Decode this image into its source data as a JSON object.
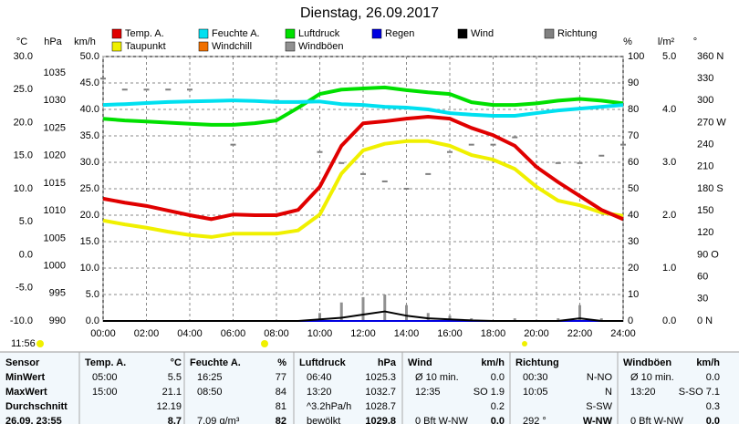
{
  "chart_data": {
    "type": "line",
    "title": "Dienstag, 26.09.2017",
    "xlim": [
      0,
      24
    ],
    "xticks": [
      {
        "value": 0,
        "label": "00:00"
      },
      {
        "value": 2,
        "label": "02:00"
      },
      {
        "value": 4,
        "label": "04:00"
      },
      {
        "value": 6,
        "label": "06:00"
      },
      {
        "value": 8,
        "label": "08:00"
      },
      {
        "value": 10,
        "label": "10:00"
      },
      {
        "value": 12,
        "label": "12:00"
      },
      {
        "value": 14,
        "label": "14:00"
      },
      {
        "value": 16,
        "label": "16:00"
      },
      {
        "value": 18,
        "label": "18:00"
      },
      {
        "value": 20,
        "label": "20:00"
      },
      {
        "value": 22,
        "label": "22:00"
      },
      {
        "value": 24,
        "label": "24:00"
      }
    ],
    "x": [
      0,
      1,
      2,
      3,
      4,
      5,
      6,
      7,
      8,
      9,
      10,
      11,
      12,
      13,
      14,
      15,
      16,
      17,
      18,
      19,
      20,
      21,
      22,
      23,
      24
    ],
    "axes": [
      {
        "label": "°C",
        "color": "#e00000",
        "lim": [
          -10,
          30
        ],
        "ticks": [
          {
            "value": -10,
            "label": "-10.0"
          },
          {
            "value": -5,
            "label": "-5.0"
          },
          {
            "value": 0,
            "label": "0.0"
          },
          {
            "value": 5,
            "label": "5.0"
          },
          {
            "value": 10,
            "label": "10.0"
          },
          {
            "value": 15,
            "label": "15.0"
          },
          {
            "value": 20,
            "label": "20.0"
          },
          {
            "value": 25,
            "label": "25.0"
          },
          {
            "value": 30,
            "label": "30.0"
          }
        ]
      },
      {
        "label": "hPa",
        "color": "#00b000",
        "lim": [
          990,
          1038
        ],
        "ticks": [
          990,
          995,
          1000,
          1005,
          1010,
          1015,
          1020,
          1025,
          1030,
          1035
        ]
      },
      {
        "label": "km/h",
        "color": "#000000",
        "lim": [
          0,
          50
        ],
        "grid": true,
        "ticks": [
          {
            "value": 0,
            "label": "0.0"
          },
          {
            "value": 5,
            "label": "5.0"
          },
          {
            "value": 10,
            "label": "10.0"
          },
          {
            "value": 15,
            "label": "15.0"
          },
          {
            "value": 20,
            "label": "20.0"
          },
          {
            "value": 25,
            "label": "25.0"
          },
          {
            "value": 30,
            "label": "30.0"
          },
          {
            "value": 35,
            "label": "35.0"
          },
          {
            "value": 40,
            "label": "40.0"
          },
          {
            "value": 45,
            "label": "45.0"
          },
          {
            "value": 50,
            "label": "50.0"
          }
        ]
      },
      {
        "label": "%",
        "color": "#00c8e8",
        "lim": [
          0,
          100
        ],
        "ticks": [
          0,
          10,
          20,
          30,
          40,
          50,
          60,
          70,
          80,
          90,
          100
        ]
      },
      {
        "label": "l/m²",
        "color": "#0000d0",
        "lim": [
          0,
          5
        ],
        "ticks": [
          {
            "value": 0,
            "label": "0.0"
          },
          {
            "value": 1,
            "label": "1.0"
          },
          {
            "value": 2,
            "label": "2.0"
          },
          {
            "value": 3,
            "label": "3.0"
          },
          {
            "value": 4,
            "label": "4.0"
          },
          {
            "value": 5,
            "label": "5.0"
          }
        ]
      },
      {
        "label": "°",
        "color": "#808080",
        "lim": [
          0,
          360
        ],
        "ticks": [
          {
            "value": 0,
            "label": "0 N"
          },
          30,
          60,
          {
            "value": 90,
            "label": "90 O"
          },
          120,
          150,
          {
            "value": 180,
            "label": "180 S"
          },
          210,
          240,
          {
            "value": 270,
            "label": "270 W"
          },
          300,
          330,
          {
            "value": 360,
            "label": "360 N"
          }
        ]
      }
    ],
    "series": [
      {
        "name": "Temp. A.",
        "color": "#e00000",
        "type": "line",
        "axis": 0,
        "values": [
          8.5,
          7.9,
          7.4,
          6.7,
          6.0,
          5.4,
          6.1,
          6.0,
          6.0,
          6.8,
          10.3,
          16.5,
          19.9,
          20.2,
          20.6,
          20.9,
          20.6,
          19.2,
          18.1,
          16.5,
          13.3,
          11.0,
          8.9,
          6.8,
          5.4
        ]
      },
      {
        "name": "Feuchte A.",
        "color": "#00e0f0",
        "type": "line",
        "axis": 3,
        "values": [
          81.7,
          82,
          82.4,
          82.8,
          83,
          83.2,
          83.4,
          83.2,
          82.8,
          82.8,
          83,
          82,
          81.7,
          81,
          80.7,
          80,
          78.6,
          78,
          77.6,
          77.6,
          78.6,
          79.6,
          80.3,
          81,
          81.7
        ]
      },
      {
        "name": "Luftdruck",
        "color": "#00e000",
        "type": "line",
        "axis": 1,
        "values": [
          1026.7,
          1026.4,
          1026.2,
          1026,
          1025.8,
          1025.6,
          1025.6,
          1025.9,
          1026.4,
          1028.7,
          1031.2,
          1032,
          1032.2,
          1032.4,
          1031.9,
          1031.5,
          1031.2,
          1029.7,
          1029.2,
          1029.2,
          1029.5,
          1030,
          1030.3,
          1030,
          1029.5
        ]
      },
      {
        "name": "Regen",
        "color": "#0000e0",
        "type": "line",
        "axis": 4,
        "values": [
          0,
          0,
          0,
          0,
          0,
          0,
          0,
          0,
          0,
          0,
          0,
          0,
          0,
          0,
          0,
          0,
          0,
          0,
          0,
          0,
          0,
          0,
          0,
          0,
          0
        ]
      },
      {
        "name": "Wind",
        "color": "#000000",
        "type": "line",
        "axis": 2,
        "values": [
          0,
          0,
          0,
          0,
          0,
          0,
          0,
          0,
          0,
          0,
          0.3,
          0.6,
          1.2,
          1.8,
          1.0,
          0.5,
          0.3,
          0.1,
          0,
          0,
          0,
          0,
          0.5,
          0,
          0
        ]
      },
      {
        "name": "Richtung",
        "color": "#808080",
        "type": "scatter",
        "axis": 5,
        "values": [
          330,
          315,
          315,
          315,
          315,
          300,
          240,
          300,
          300,
          290,
          230,
          215,
          200,
          190,
          180,
          200,
          230,
          240,
          240,
          250,
          210,
          215,
          215,
          225,
          240
        ]
      },
      {
        "name": "Taupunkt",
        "color": "#f0f000",
        "type": "line",
        "axis": 0,
        "values": [
          5.2,
          4.6,
          4.1,
          3.5,
          3.0,
          2.7,
          3.2,
          3.2,
          3.2,
          3.7,
          6.1,
          12.3,
          15.8,
          16.8,
          17.2,
          17.2,
          16.5,
          15.1,
          14.4,
          13.0,
          10.3,
          8.2,
          7.5,
          6.4,
          5.9
        ]
      },
      {
        "name": "Windchill",
        "color": "#f07000",
        "type": "line",
        "axis": 0
      },
      {
        "name": "Windböen",
        "color": "#909090",
        "type": "bar",
        "axis": 2,
        "values": [
          0,
          0,
          0,
          0,
          0,
          0,
          0,
          0,
          0,
          0,
          1.5,
          3.5,
          4.5,
          5.0,
          3.0,
          1.5,
          1.0,
          0.5,
          0,
          0.5,
          0,
          0.5,
          3.0,
          0.5,
          0
        ]
      }
    ]
  },
  "time_label": "11:56",
  "table": {
    "header": "Sensor",
    "columns": [
      {
        "name": "Temp. A.",
        "unit": "°C"
      },
      {
        "name": "Feuchte A.",
        "unit": "%"
      },
      {
        "name": "Luftdruck",
        "unit": "hPa"
      },
      {
        "name": "Wind",
        "unit": "km/h"
      },
      {
        "name": "Richtung",
        "unit": null
      },
      {
        "name": "Windböen",
        "unit": "km/h"
      }
    ],
    "row_labels": [
      "MinWert",
      "MaxWert",
      "Durchschnitt",
      "26.09. 23:55"
    ],
    "rows": [
      [
        [
          "05:00",
          "5.5"
        ],
        [
          "16:25",
          "77"
        ],
        [
          "06:40",
          "1025.3"
        ],
        [
          "Ø 10 min.",
          "0.0"
        ],
        [
          "00:30",
          "N-NO"
        ],
        [
          "Ø 10 min.",
          "0.0"
        ]
      ],
      [
        [
          "15:00",
          "21.1"
        ],
        [
          "08:50",
          "84"
        ],
        [
          "13:20",
          "1032.7"
        ],
        [
          "12:35",
          "SO 1.9"
        ],
        [
          "10:05",
          "N"
        ],
        [
          "13:20",
          "S-SO 7.1"
        ]
      ],
      [
        [
          null,
          "12.19"
        ],
        [
          null,
          "81"
        ],
        [
          "^3.2hPa/h",
          "1028.7"
        ],
        [
          null,
          "0.2"
        ],
        [
          null,
          "S-SW"
        ],
        [
          null,
          "0.3"
        ]
      ],
      [
        [
          null,
          "8.7"
        ],
        [
          "7.09 g/m³",
          "82"
        ],
        [
          "bewölkt",
          "1029.8"
        ],
        [
          "0 Bft W-NW",
          "0.0"
        ],
        [
          "292 °",
          "W-NW"
        ],
        [
          "0 Bft W-NW",
          "0.0"
        ]
      ]
    ]
  }
}
